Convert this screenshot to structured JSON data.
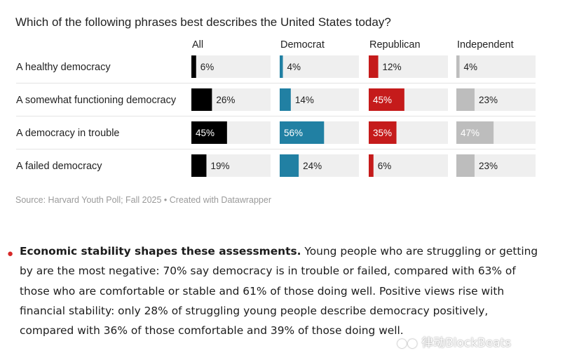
{
  "chart_data": {
    "type": "bar",
    "title": "Which of the following phrases best describes the United States today?",
    "categories": [
      "A healthy democracy",
      "A somewhat functioning democracy",
      "A democracy in trouble",
      "A failed democracy"
    ],
    "series": [
      {
        "name": "All",
        "values": [
          6,
          26,
          45,
          19
        ],
        "labels": [
          "6%",
          "26%",
          "45%",
          "19%"
        ],
        "color": "#000000"
      },
      {
        "name": "Democrat",
        "values": [
          4,
          14,
          56,
          24
        ],
        "labels": [
          "4%",
          "14%",
          "56%",
          "24%"
        ],
        "color": "#2180a3"
      },
      {
        "name": "Republican",
        "values": [
          12,
          45,
          35,
          6
        ],
        "labels": [
          "12%",
          "45%",
          "35%",
          "6%"
        ],
        "color": "#c51b1b"
      },
      {
        "name": "Independent",
        "values": [
          4,
          23,
          47,
          23
        ],
        "labels": [
          "4%",
          "23%",
          "47%",
          "23%"
        ],
        "color": "#bdbdbd"
      }
    ],
    "xlim": [
      0,
      100
    ],
    "track_color": "#efefef",
    "grid": false,
    "source": "Source: Harvard Youth Poll; Fall 2025 • Created with Datawrapper"
  },
  "article": {
    "lead": "Economic stability shapes these assessments.",
    "body": " Young people who are struggling or getting by are the most negative: 70% say democracy is in trouble or failed, compared with 63% of those who are comfortable or stable and 61% of those doing well. Positive views rise with financial stability: only 28% of struggling young people describe democracy positively, compared with 36% of those comfortable and 39% of those doing well.",
    "bullet_color": "#d62828"
  },
  "watermark": "律动BlockBeats"
}
